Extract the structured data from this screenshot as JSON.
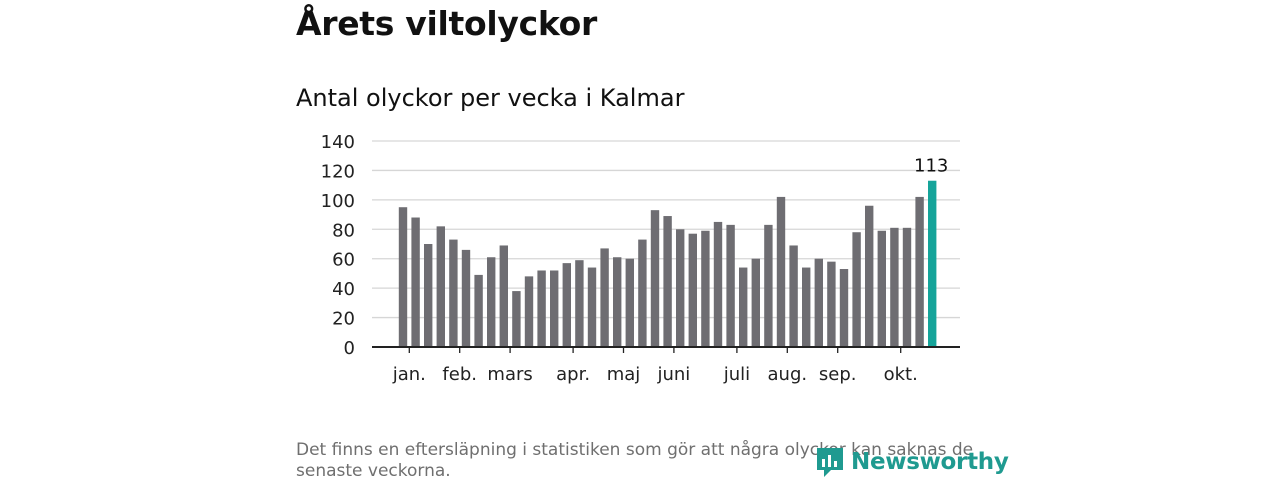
{
  "header": {
    "title": "Årets viltolyckor",
    "subtitle": "Antal olyckor per vecka i Kalmar"
  },
  "chart_data": {
    "type": "bar",
    "title": "Årets viltolyckor",
    "subtitle": "Antal olyckor per vecka i Kalmar",
    "xlabel": "",
    "ylabel": "",
    "ylim": [
      0,
      140
    ],
    "yticks": [
      0,
      20,
      40,
      60,
      80,
      100,
      120,
      140
    ],
    "grid": true,
    "values": [
      95,
      88,
      70,
      82,
      73,
      66,
      49,
      61,
      69,
      38,
      48,
      52,
      52,
      57,
      59,
      54,
      67,
      61,
      60,
      73,
      93,
      89,
      80,
      77,
      79,
      85,
      83,
      54,
      60,
      83,
      102,
      69,
      54,
      60,
      58,
      53,
      78,
      96,
      79,
      81,
      81,
      102,
      113
    ],
    "highlight_index": 42,
    "highlight_label": "113",
    "month_labels": [
      {
        "label": "jan.",
        "week": 0.5
      },
      {
        "label": "feb.",
        "week": 4.5
      },
      {
        "label": "mars",
        "week": 8.5
      },
      {
        "label": "apr.",
        "week": 13.5
      },
      {
        "label": "maj",
        "week": 17.5
      },
      {
        "label": "juni",
        "week": 21.5
      },
      {
        "label": "juli",
        "week": 26.5
      },
      {
        "label": "aug.",
        "week": 30.5
      },
      {
        "label": "sep.",
        "week": 34.5
      },
      {
        "label": "okt.",
        "week": 39.5
      }
    ],
    "colors": {
      "bar": "#6e6d72",
      "highlight": "#15a49a",
      "grid": "#d6d6d6",
      "axis": "#222222"
    }
  },
  "footer": {
    "note": "Det finns en eftersläpning i statistiken som gör att några olyckor kan saknas de senaste veckorna.",
    "logo_text": "Newsworthy"
  }
}
